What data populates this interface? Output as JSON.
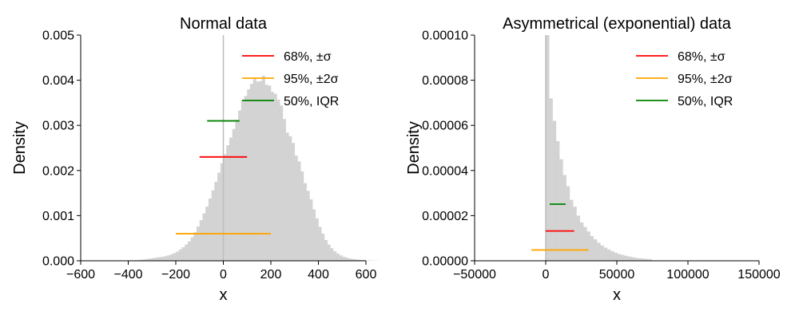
{
  "chart_data": [
    {
      "type": "histogram",
      "title": "Normal data",
      "xlabel": "x",
      "ylabel": "Density",
      "xlim": [
        -600,
        600
      ],
      "ylim": [
        0,
        0.005
      ],
      "xticks": [
        -600,
        -400,
        -200,
        0,
        200,
        400,
        600
      ],
      "xtick_labels": [
        "−600",
        "−400",
        "−200",
        "0",
        "200",
        "400",
        "600"
      ],
      "yticks": [
        0,
        0.001,
        0.002,
        0.003,
        0.004,
        0.005
      ],
      "ytick_labels": [
        "0.000",
        "0.001",
        "0.002",
        "0.003",
        "0.004",
        "0.005"
      ],
      "grid": false,
      "legend_position": "top-right",
      "histogram_color": "#d3d3d3",
      "center_line": {
        "x": 0,
        "color": "#bdbdbd"
      },
      "histogram": {
        "bin_edges_start": -400,
        "bin_width": 12.5,
        "density": [
          5e-06,
          8e-06,
          1.2e-05,
          1.6e-05,
          2.2e-05,
          3e-05,
          4e-05,
          5e-05,
          6e-05,
          7e-05,
          8e-05,
          9e-05,
          0.0001,
          0.00012,
          0.00014,
          0.00017,
          0.0002,
          0.00025,
          0.0003,
          0.00036,
          0.00043,
          0.00052,
          0.00063,
          0.00076,
          0.0009,
          0.00105,
          0.0012,
          0.00138,
          0.00156,
          0.00175,
          0.00195,
          0.00216,
          0.00236,
          0.00256,
          0.00273,
          0.00292,
          0.00312,
          0.00333,
          0.00356,
          0.00365,
          0.0038,
          0.00392,
          0.00405,
          0.00397,
          0.00398,
          0.0041,
          0.0039,
          0.00388,
          0.00374,
          0.0037,
          0.00357,
          0.00344,
          0.00314,
          0.00284,
          0.00276,
          0.00261,
          0.00233,
          0.0022,
          0.00198,
          0.00172,
          0.00155,
          0.00136,
          0.00114,
          0.00094,
          0.00075,
          0.0006,
          0.00046,
          0.00036,
          0.00028,
          0.00021,
          0.00016,
          0.00012,
          9e-05,
          7e-05,
          5e-05,
          4e-05,
          3e-05,
          2.5e-05,
          2e-05,
          1.5e-05,
          1e-05,
          8e-06,
          6e-06,
          5e-06
        ]
      },
      "intervals": [
        {
          "name": "68%, ±σ",
          "color": "#ff0000",
          "x_start": -100,
          "x_end": 100,
          "y": 0.0023
        },
        {
          "name": "95%, ±2σ",
          "color": "#ffa500",
          "x_start": -200,
          "x_end": 200,
          "y": 0.0006
        },
        {
          "name": "50%, IQR",
          "color": "#008000",
          "x_start": -68,
          "x_end": 68,
          "y": 0.0031
        }
      ]
    },
    {
      "type": "histogram",
      "title": "Asymmetrical (exponential) data",
      "xlabel": "x",
      "ylabel": "Density",
      "xlim": [
        -50000,
        150000
      ],
      "ylim": [
        0,
        0.0001
      ],
      "xticks": [
        -50000,
        0,
        50000,
        100000,
        150000
      ],
      "xtick_labels": [
        "−50000",
        "0",
        "50000",
        "100000",
        "150000"
      ],
      "yticks": [
        0,
        2e-05,
        4e-05,
        6e-05,
        8e-05,
        0.0001
      ],
      "ytick_labels": [
        "0.00000",
        "0.00002",
        "0.00004",
        "0.00006",
        "0.00008",
        "0.00010"
      ],
      "grid": false,
      "legend_position": "top-right",
      "histogram_color": "#d3d3d3",
      "center_line": {
        "x": 0,
        "color": "#bdbdbd"
      },
      "histogram": {
        "bin_edges_start": 0,
        "bin_width": 2400,
        "density": [
          0.00098,
          7.2e-05,
          6.2e-05,
          5.3e-05,
          4.5e-05,
          3.8e-05,
          3.3e-05,
          2.7e-05,
          2.4e-05,
          2e-05,
          1.7e-05,
          1.5e-05,
          1.3e-05,
          1.1e-05,
          9.5e-06,
          8e-06,
          6.8e-06,
          5.8e-06,
          5e-06,
          4.2e-06,
          3.6e-06,
          3e-06,
          2.6e-06,
          2.2e-06,
          1.9e-06,
          1.6e-06,
          1.3e-06,
          1.1e-06,
          1e-06,
          8e-07,
          7e-07
        ]
      },
      "intervals": [
        {
          "name": "68%, ±σ",
          "color": "#ff0000",
          "x_start": 0,
          "x_end": 20000,
          "y": 1.32e-05
        },
        {
          "name": "95%, ±2σ",
          "color": "#ffa500",
          "x_start": -10000,
          "x_end": 30000,
          "y": 4.8e-06
        },
        {
          "name": "50%, IQR",
          "color": "#008000",
          "x_start": 2800,
          "x_end": 14000,
          "y": 2.51e-05
        }
      ]
    }
  ]
}
